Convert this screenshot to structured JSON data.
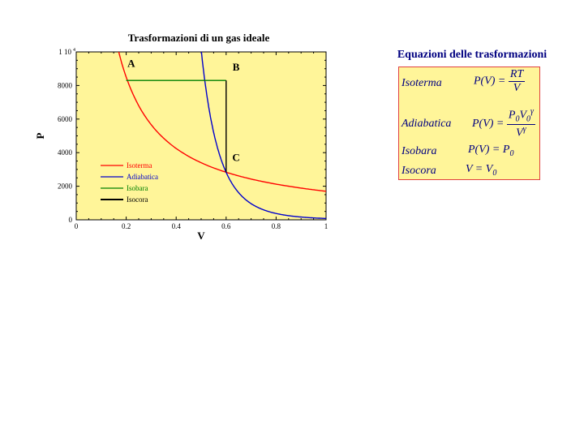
{
  "chart_data": {
    "type": "line",
    "title": "Trasformazioni di un gas ideale",
    "xlabel": "V",
    "ylabel": "P",
    "xlim": [
      0,
      1
    ],
    "ylim": [
      0,
      10000
    ],
    "x_ticks": [
      "0",
      "0.2",
      "0.4",
      "0.6",
      "0.8",
      "1"
    ],
    "x_tick_values": [
      0,
      0.2,
      0.4,
      0.6,
      0.8,
      1
    ],
    "y_ticks": [
      "0",
      "2000",
      "4000",
      "6000",
      "8000",
      "1 10"
    ],
    "y_tick_values": [
      0,
      2000,
      4000,
      6000,
      8000,
      10000
    ],
    "y_top_exponent": "4",
    "background": "#fff599",
    "series": [
      {
        "name": "Isoterma",
        "color": "#ff0000",
        "kind": "isotherm",
        "constant": 1700,
        "x_range": [
          0.16,
          1
        ]
      },
      {
        "name": "Adiabatica",
        "color": "#0000cc",
        "kind": "adiabatic",
        "x_ref": 0.6,
        "y_ref": 2830,
        "gamma": 7,
        "x_range": [
          0.5,
          1
        ]
      },
      {
        "name": "Isobara",
        "color": "#008000",
        "kind": "segment",
        "points": [
          [
            0.2,
            8300
          ],
          [
            0.6,
            8300
          ]
        ]
      },
      {
        "name": "Isocora",
        "color": "#000000",
        "kind": "segment",
        "points": [
          [
            0.6,
            8300
          ],
          [
            0.6,
            2830
          ]
        ]
      }
    ],
    "annotations": [
      {
        "text": "A",
        "x": 0.22,
        "y": 9100
      },
      {
        "text": "B",
        "x": 0.64,
        "y": 8900
      },
      {
        "text": "C",
        "x": 0.64,
        "y": 3500
      }
    ],
    "legend": {
      "position": "bottom-left"
    }
  },
  "equations": {
    "title": "Equazioni delle trasformazioni",
    "isoterma": {
      "name": "Isoterma",
      "lhs": "P(V) =",
      "num": "RT",
      "den": "V"
    },
    "adiabatica": {
      "name": "Adiabatica",
      "lhs": "P(V) =",
      "num_base": "P",
      "num_sub": "0",
      "num_v": "V",
      "num_vsub": "0",
      "num_sup": "γ",
      "den_base": "V",
      "den_sup": "γ"
    },
    "isobara": {
      "name": "Isobara",
      "lhs": "P(V) = P",
      "sub": "0"
    },
    "isocora": {
      "name": "Isocora",
      "lhs": "V = V",
      "sub": "0"
    }
  }
}
